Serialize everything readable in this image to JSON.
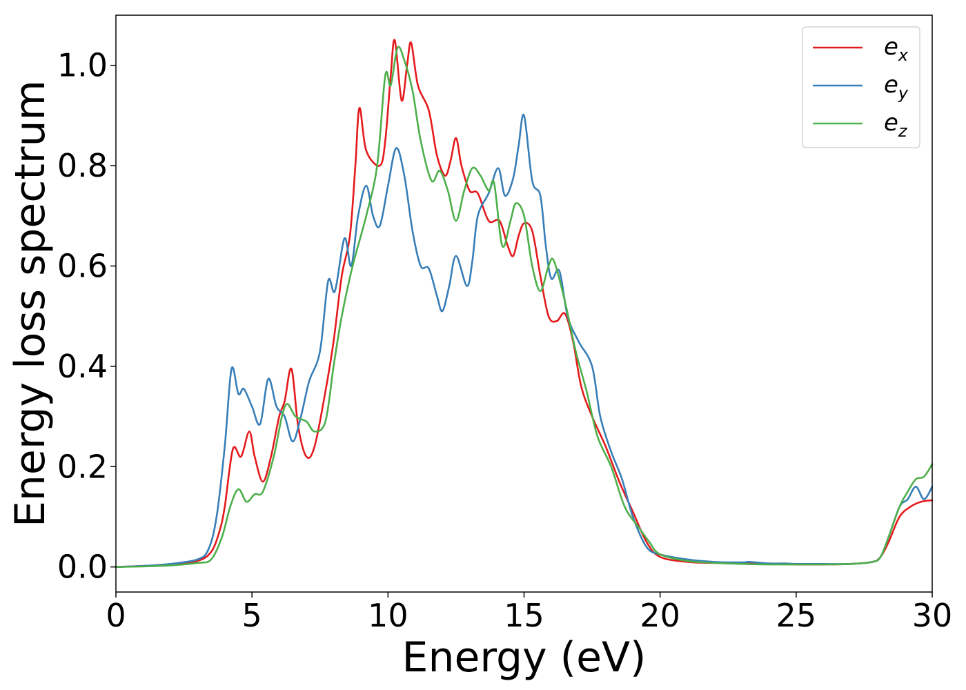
{
  "chart_data": {
    "type": "line",
    "title": "",
    "xlabel": "Energy (eV)",
    "ylabel": "Energy loss spectrum",
    "xlim": [
      0,
      30
    ],
    "ylim": [
      -0.05,
      1.1
    ],
    "xticks": [
      0,
      5,
      10,
      15,
      20,
      25,
      30
    ],
    "yticks": [
      0.0,
      0.2,
      0.4,
      0.6,
      0.8,
      1.0
    ],
    "xtick_labels": [
      "0",
      "5",
      "10",
      "15",
      "20",
      "25",
      "30"
    ],
    "ytick_labels": [
      "0.0",
      "0.2",
      "0.4",
      "0.6",
      "0.8",
      "1.0"
    ],
    "grid": false,
    "legend_position": "top-right",
    "series": [
      {
        "name": "e_x",
        "legend_base": "e",
        "legend_sub": "x",
        "color": "#e41a1c",
        "points": [
          [
            0,
            0.0
          ],
          [
            1,
            0.002
          ],
          [
            2,
            0.005
          ],
          [
            3,
            0.012
          ],
          [
            3.5,
            0.03
          ],
          [
            3.8,
            0.07
          ],
          [
            4.0,
            0.12
          ],
          [
            4.3,
            0.235
          ],
          [
            4.6,
            0.22
          ],
          [
            4.9,
            0.27
          ],
          [
            5.1,
            0.22
          ],
          [
            5.4,
            0.17
          ],
          [
            5.7,
            0.22
          ],
          [
            6.0,
            0.3
          ],
          [
            6.2,
            0.33
          ],
          [
            6.45,
            0.395
          ],
          [
            6.7,
            0.28
          ],
          [
            7.0,
            0.22
          ],
          [
            7.3,
            0.24
          ],
          [
            7.7,
            0.35
          ],
          [
            8.0,
            0.45
          ],
          [
            8.3,
            0.58
          ],
          [
            8.6,
            0.66
          ],
          [
            8.8,
            0.8
          ],
          [
            8.95,
            0.915
          ],
          [
            9.2,
            0.83
          ],
          [
            9.7,
            0.8
          ],
          [
            9.9,
            0.85
          ],
          [
            10.1,
            0.98
          ],
          [
            10.25,
            1.05
          ],
          [
            10.5,
            0.93
          ],
          [
            10.7,
            1.0
          ],
          [
            10.85,
            1.045
          ],
          [
            11.1,
            0.96
          ],
          [
            11.5,
            0.91
          ],
          [
            11.8,
            0.82
          ],
          [
            12.1,
            0.78
          ],
          [
            12.3,
            0.81
          ],
          [
            12.5,
            0.855
          ],
          [
            12.7,
            0.8
          ],
          [
            13.0,
            0.75
          ],
          [
            13.3,
            0.745
          ],
          [
            13.7,
            0.69
          ],
          [
            14.1,
            0.69
          ],
          [
            14.4,
            0.64
          ],
          [
            14.6,
            0.62
          ],
          [
            14.8,
            0.66
          ],
          [
            15.0,
            0.685
          ],
          [
            15.3,
            0.67
          ],
          [
            15.6,
            0.58
          ],
          [
            15.9,
            0.5
          ],
          [
            16.2,
            0.49
          ],
          [
            16.5,
            0.505
          ],
          [
            16.8,
            0.45
          ],
          [
            17.1,
            0.36
          ],
          [
            17.5,
            0.3
          ],
          [
            18.0,
            0.24
          ],
          [
            18.5,
            0.17
          ],
          [
            19.0,
            0.11
          ],
          [
            19.5,
            0.05
          ],
          [
            20,
            0.02
          ],
          [
            21,
            0.01
          ],
          [
            22,
            0.008
          ],
          [
            23,
            0.007
          ],
          [
            24,
            0.006
          ],
          [
            25,
            0.005
          ],
          [
            26,
            0.005
          ],
          [
            27,
            0.006
          ],
          [
            27.8,
            0.01
          ],
          [
            28.1,
            0.02
          ],
          [
            28.4,
            0.05
          ],
          [
            28.8,
            0.1
          ],
          [
            29.2,
            0.12
          ],
          [
            29.6,
            0.13
          ],
          [
            30,
            0.133
          ]
        ]
      },
      {
        "name": "e_y",
        "legend_base": "e",
        "legend_sub": "y",
        "color": "#377eb8",
        "points": [
          [
            0,
            0.0
          ],
          [
            1,
            0.002
          ],
          [
            2,
            0.006
          ],
          [
            3,
            0.015
          ],
          [
            3.4,
            0.035
          ],
          [
            3.7,
            0.1
          ],
          [
            4.0,
            0.24
          ],
          [
            4.25,
            0.395
          ],
          [
            4.5,
            0.345
          ],
          [
            4.7,
            0.355
          ],
          [
            5.0,
            0.32
          ],
          [
            5.3,
            0.285
          ],
          [
            5.6,
            0.375
          ],
          [
            5.9,
            0.32
          ],
          [
            6.2,
            0.3
          ],
          [
            6.5,
            0.25
          ],
          [
            6.8,
            0.3
          ],
          [
            7.1,
            0.37
          ],
          [
            7.5,
            0.43
          ],
          [
            7.8,
            0.57
          ],
          [
            8.05,
            0.55
          ],
          [
            8.4,
            0.655
          ],
          [
            8.65,
            0.6
          ],
          [
            8.9,
            0.7
          ],
          [
            9.2,
            0.76
          ],
          [
            9.45,
            0.7
          ],
          [
            9.7,
            0.68
          ],
          [
            10.0,
            0.76
          ],
          [
            10.3,
            0.835
          ],
          [
            10.6,
            0.78
          ],
          [
            10.9,
            0.67
          ],
          [
            11.2,
            0.6
          ],
          [
            11.5,
            0.595
          ],
          [
            11.8,
            0.54
          ],
          [
            12.0,
            0.51
          ],
          [
            12.25,
            0.56
          ],
          [
            12.5,
            0.62
          ],
          [
            12.9,
            0.56
          ],
          [
            13.1,
            0.61
          ],
          [
            13.3,
            0.7
          ],
          [
            13.7,
            0.745
          ],
          [
            14.05,
            0.795
          ],
          [
            14.3,
            0.74
          ],
          [
            14.6,
            0.775
          ],
          [
            14.8,
            0.84
          ],
          [
            15.0,
            0.9
          ],
          [
            15.3,
            0.77
          ],
          [
            15.6,
            0.74
          ],
          [
            15.8,
            0.64
          ],
          [
            16.0,
            0.575
          ],
          [
            16.3,
            0.59
          ],
          [
            16.6,
            0.5
          ],
          [
            17.0,
            0.45
          ],
          [
            17.5,
            0.4
          ],
          [
            17.8,
            0.3
          ],
          [
            18.2,
            0.23
          ],
          [
            18.6,
            0.175
          ],
          [
            19.0,
            0.1
          ],
          [
            19.5,
            0.04
          ],
          [
            20,
            0.025
          ],
          [
            21,
            0.015
          ],
          [
            22,
            0.01
          ],
          [
            23,
            0.009
          ],
          [
            23.3,
            0.01
          ],
          [
            24,
            0.007
          ],
          [
            24.6,
            0.007
          ],
          [
            25,
            0.006
          ],
          [
            26,
            0.006
          ],
          [
            27,
            0.006
          ],
          [
            27.8,
            0.01
          ],
          [
            28.1,
            0.02
          ],
          [
            28.4,
            0.06
          ],
          [
            28.8,
            0.12
          ],
          [
            29.1,
            0.135
          ],
          [
            29.4,
            0.16
          ],
          [
            29.7,
            0.135
          ],
          [
            30,
            0.16
          ]
        ]
      },
      {
        "name": "e_z",
        "legend_base": "e",
        "legend_sub": "z",
        "color": "#4daf4a",
        "points": [
          [
            0,
            0.0
          ],
          [
            1,
            0.001
          ],
          [
            2,
            0.003
          ],
          [
            3,
            0.008
          ],
          [
            3.5,
            0.015
          ],
          [
            3.9,
            0.06
          ],
          [
            4.2,
            0.12
          ],
          [
            4.5,
            0.155
          ],
          [
            4.8,
            0.13
          ],
          [
            5.1,
            0.145
          ],
          [
            5.4,
            0.15
          ],
          [
            5.8,
            0.22
          ],
          [
            6.1,
            0.3
          ],
          [
            6.3,
            0.325
          ],
          [
            6.6,
            0.3
          ],
          [
            7.0,
            0.29
          ],
          [
            7.3,
            0.27
          ],
          [
            7.7,
            0.29
          ],
          [
            8.0,
            0.4
          ],
          [
            8.3,
            0.5
          ],
          [
            8.7,
            0.6
          ],
          [
            9.2,
            0.7
          ],
          [
            9.6,
            0.8
          ],
          [
            9.9,
            0.98
          ],
          [
            10.1,
            0.96
          ],
          [
            10.35,
            1.035
          ],
          [
            10.6,
            1.01
          ],
          [
            10.9,
            0.95
          ],
          [
            11.2,
            0.85
          ],
          [
            11.6,
            0.77
          ],
          [
            11.9,
            0.79
          ],
          [
            12.2,
            0.75
          ],
          [
            12.5,
            0.69
          ],
          [
            12.8,
            0.75
          ],
          [
            13.1,
            0.795
          ],
          [
            13.4,
            0.78
          ],
          [
            13.7,
            0.75
          ],
          [
            13.9,
            0.765
          ],
          [
            14.2,
            0.64
          ],
          [
            14.5,
            0.69
          ],
          [
            14.7,
            0.725
          ],
          [
            15.0,
            0.7
          ],
          [
            15.3,
            0.6
          ],
          [
            15.6,
            0.55
          ],
          [
            15.9,
            0.6
          ],
          [
            16.1,
            0.61
          ],
          [
            16.5,
            0.53
          ],
          [
            16.9,
            0.43
          ],
          [
            17.3,
            0.35
          ],
          [
            17.7,
            0.26
          ],
          [
            18.2,
            0.2
          ],
          [
            18.7,
            0.12
          ],
          [
            19.2,
            0.08
          ],
          [
            19.6,
            0.05
          ],
          [
            20.0,
            0.025
          ],
          [
            21,
            0.012
          ],
          [
            22,
            0.008
          ],
          [
            23,
            0.006
          ],
          [
            24,
            0.005
          ],
          [
            25,
            0.005
          ],
          [
            26,
            0.005
          ],
          [
            27,
            0.006
          ],
          [
            27.8,
            0.01
          ],
          [
            28.1,
            0.02
          ],
          [
            28.4,
            0.06
          ],
          [
            28.8,
            0.12
          ],
          [
            29.1,
            0.15
          ],
          [
            29.4,
            0.175
          ],
          [
            29.7,
            0.18
          ],
          [
            30,
            0.205
          ]
        ]
      }
    ]
  }
}
